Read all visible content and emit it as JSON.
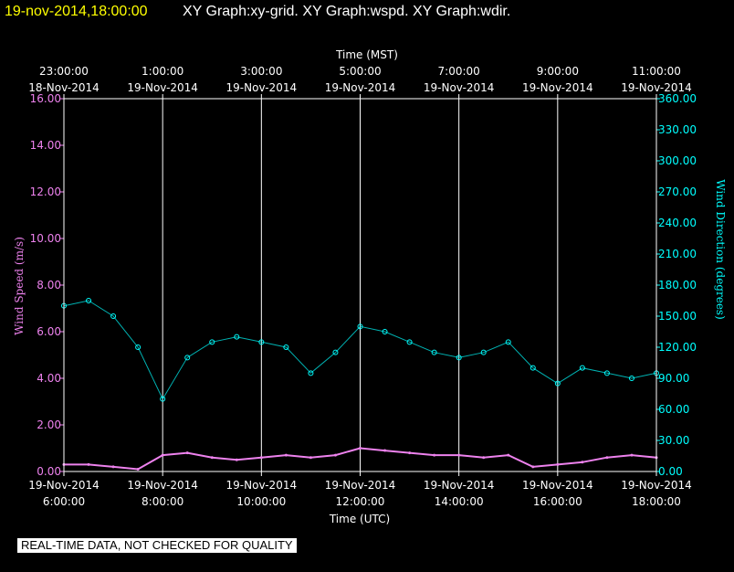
{
  "header": {
    "datetime": "19-nov-2014,18:00:00",
    "graphs": "XY Graph:xy-grid.  XY Graph:wspd.  XY Graph:wdir."
  },
  "notice": "REAL-TIME DATA, NOT CHECKED FOR QUALITY",
  "colors": {
    "background": "#000000",
    "grid": "#ffffff",
    "wind_speed": "#ee82ee",
    "wind_direction": "#00ffff",
    "header_date": "#ffff00"
  },
  "chart_data": {
    "type": "scatter",
    "grid": true,
    "top_axis": {
      "title": "Time (MST)",
      "ticks": [
        {
          "time": "23:00:00",
          "date": "18-Nov-2014"
        },
        {
          "time": "1:00:00",
          "date": "19-Nov-2014"
        },
        {
          "time": "3:00:00",
          "date": "19-Nov-2014"
        },
        {
          "time": "5:00:00",
          "date": "19-Nov-2014"
        },
        {
          "time": "7:00:00",
          "date": "19-Nov-2014"
        },
        {
          "time": "9:00:00",
          "date": "19-Nov-2014"
        },
        {
          "time": "11:00:00",
          "date": "19-Nov-2014"
        }
      ]
    },
    "bottom_axis": {
      "title": "Time (UTC)",
      "ticks": [
        {
          "date": "19-Nov-2014",
          "time": "6:00:00"
        },
        {
          "date": "19-Nov-2014",
          "time": "8:00:00"
        },
        {
          "date": "19-Nov-2014",
          "time": "10:00:00"
        },
        {
          "date": "19-Nov-2014",
          "time": "12:00:00"
        },
        {
          "date": "19-Nov-2014",
          "time": "14:00:00"
        },
        {
          "date": "19-Nov-2014",
          "time": "16:00:00"
        },
        {
          "date": "19-Nov-2014",
          "time": "18:00:00"
        }
      ],
      "range_utc_hours": [
        6,
        18
      ]
    },
    "left_axis": {
      "title": "Wind Speed (m/s)",
      "ylim": [
        0,
        16
      ],
      "ticks": [
        "0.00",
        "2.00",
        "4.00",
        "6.00",
        "8.00",
        "10.00",
        "12.00",
        "14.00",
        "16.00"
      ]
    },
    "right_axis": {
      "title": "Wind Direction (degrees)",
      "ylim": [
        0,
        360
      ],
      "ticks": [
        "0.00",
        "30.00",
        "60.00",
        "90.00",
        "120.00",
        "150.00",
        "180.00",
        "210.00",
        "240.00",
        "270.00",
        "300.00",
        "330.00",
        "360.00"
      ]
    },
    "series": [
      {
        "name": "Wind Speed",
        "axis": "left",
        "style": "line",
        "x_utc_hours": [
          6.0,
          6.5,
          7.0,
          7.5,
          8.0,
          8.5,
          9.0,
          9.5,
          10.0,
          10.5,
          11.0,
          11.5,
          12.0,
          12.5,
          13.0,
          13.5,
          14.0,
          14.5,
          15.0,
          15.5,
          16.0,
          16.5,
          17.0,
          17.5,
          18.0
        ],
        "values": [
          0.3,
          0.3,
          0.2,
          0.1,
          0.7,
          0.8,
          0.6,
          0.5,
          0.6,
          0.7,
          0.6,
          0.7,
          1.0,
          0.9,
          0.8,
          0.7,
          0.7,
          0.6,
          0.7,
          0.2,
          0.3,
          0.4,
          0.6,
          0.7,
          0.6
        ]
      },
      {
        "name": "Wind Direction",
        "axis": "right",
        "style": "markers",
        "x_utc_hours": [
          6.0,
          6.5,
          7.0,
          7.5,
          8.0,
          8.5,
          9.0,
          9.5,
          10.0,
          10.5,
          11.0,
          11.5,
          12.0,
          12.5,
          13.0,
          13.5,
          14.0,
          14.5,
          15.0,
          15.5,
          16.0,
          16.5,
          17.0,
          17.5,
          18.0
        ],
        "values": [
          160,
          165,
          150,
          120,
          70,
          110,
          125,
          130,
          125,
          120,
          95,
          115,
          140,
          135,
          125,
          115,
          110,
          115,
          125,
          100,
          85,
          100,
          95,
          90,
          95
        ]
      }
    ]
  }
}
